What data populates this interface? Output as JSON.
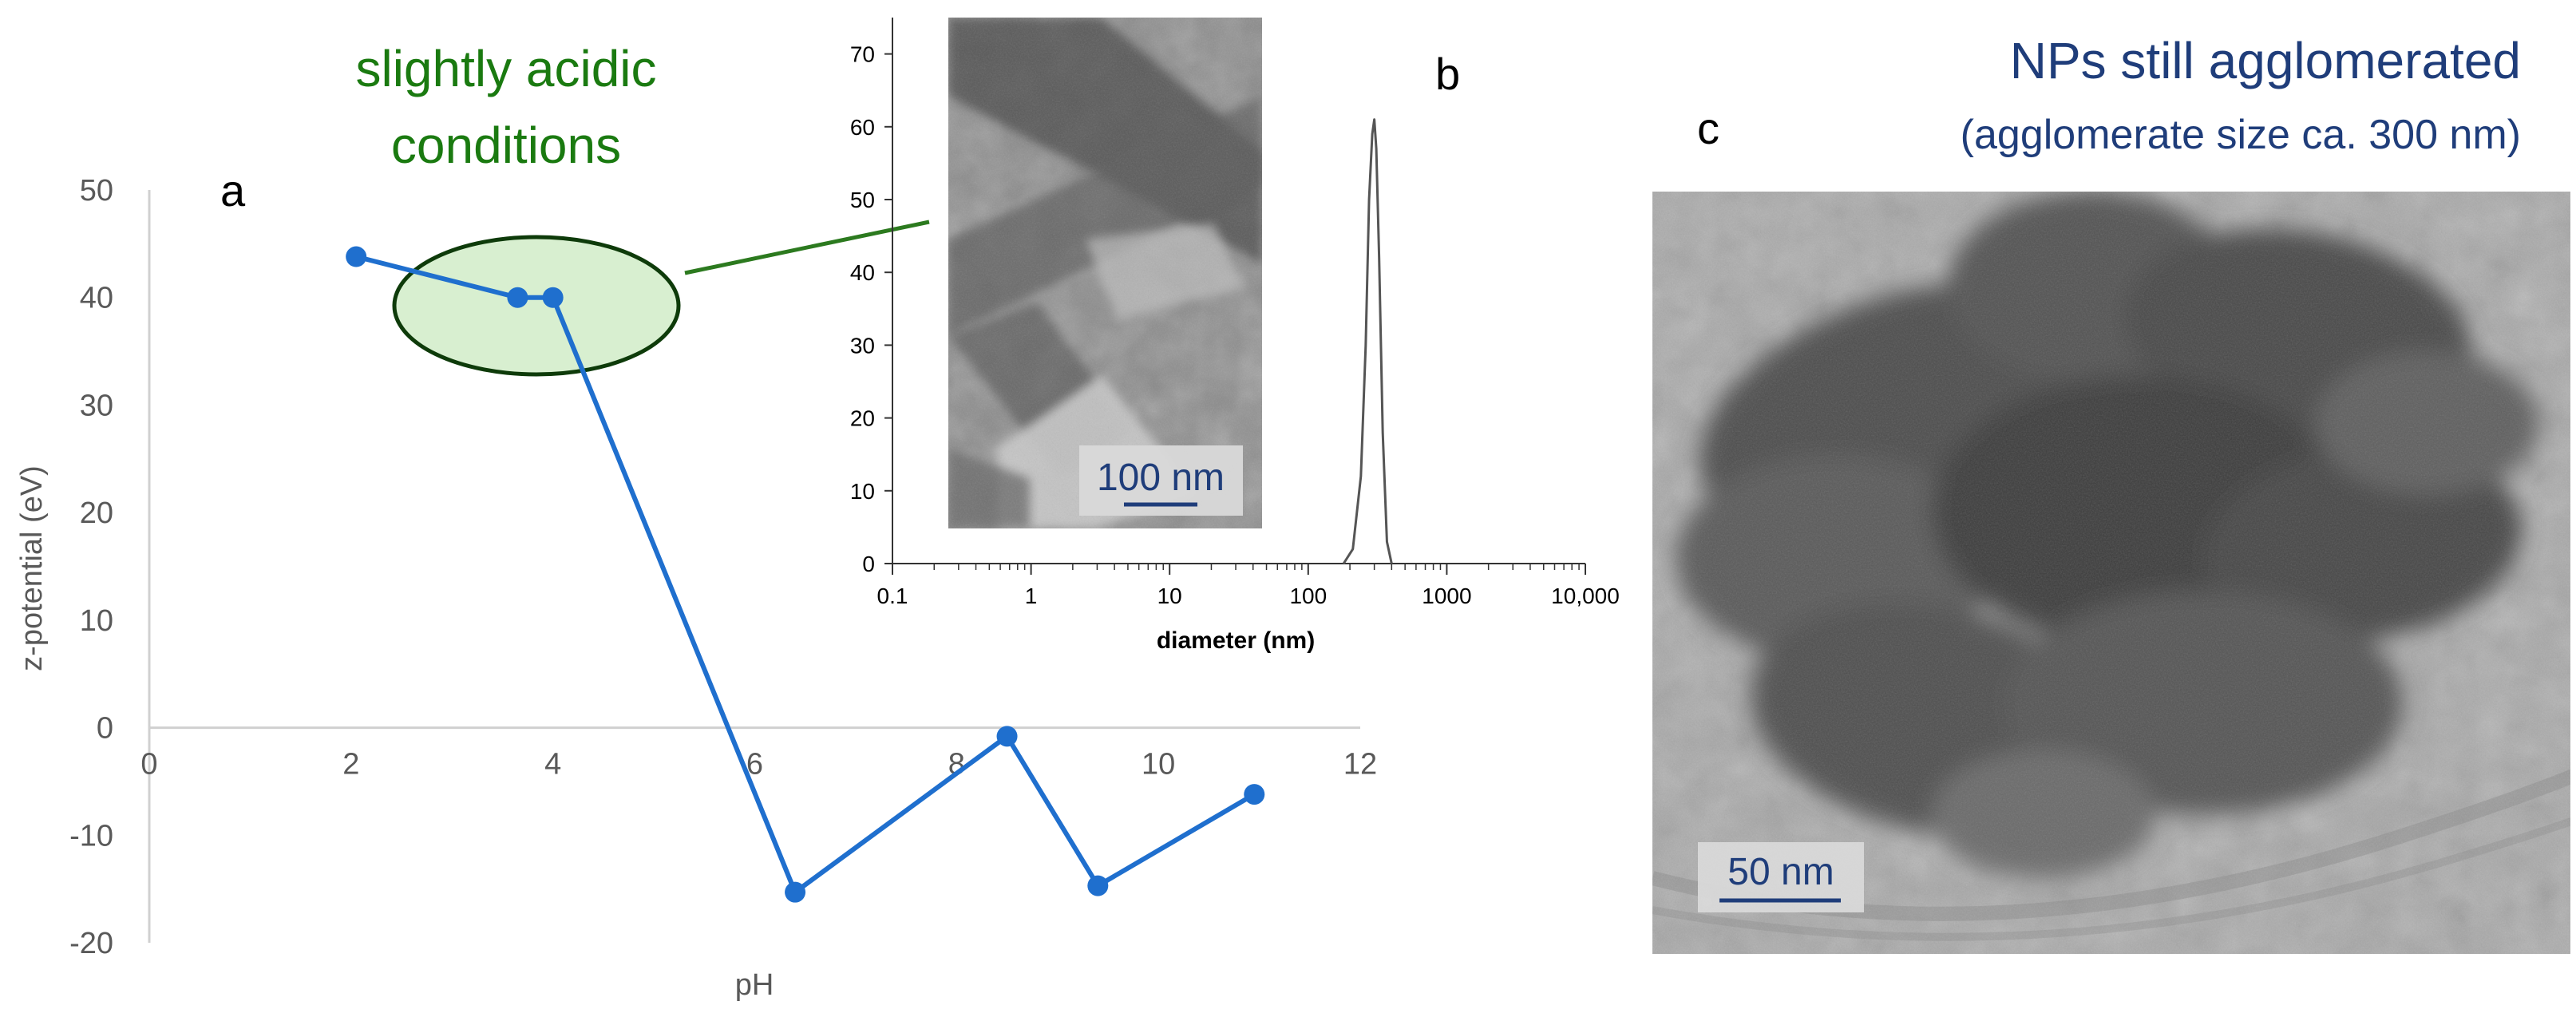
{
  "chart_data": [
    {
      "type": "line",
      "panel": "a",
      "xlabel": "pH",
      "ylabel": "z-potential (eV)",
      "xlim": [
        0,
        12
      ],
      "ylim": [
        -20,
        50
      ],
      "xticks": [
        0,
        2,
        4,
        6,
        8,
        10,
        12
      ],
      "yticks": [
        -20,
        -10,
        0,
        10,
        20,
        30,
        40,
        50
      ],
      "grid": false,
      "series": [
        {
          "x": [
            2.05,
            3.65,
            4.0,
            6.4,
            8.5,
            9.4,
            10.95
          ],
          "y": [
            43.8,
            40.0,
            40.0,
            -15.3,
            -0.8,
            -14.7,
            -6.2
          ],
          "color": "#1f6fce"
        }
      ],
      "annotation": "slightly acidic conditions"
    },
    {
      "type": "line",
      "panel": "b",
      "xlabel": "diameter (nm)",
      "xscale": "log",
      "xlim": [
        0.1,
        10000
      ],
      "ylim": [
        0,
        75
      ],
      "xtick_labels": [
        "0.1",
        "1",
        "10",
        "100",
        "1000",
        "10,000"
      ],
      "xtick_values": [
        0.1,
        1,
        10,
        100,
        1000,
        10000
      ],
      "yticks": [
        0,
        10,
        20,
        30,
        40,
        50,
        60,
        70
      ],
      "grid": false,
      "series": [
        {
          "x": [
            180,
            210,
            240,
            260,
            275,
            290,
            300,
            310,
            325,
            345,
            370,
            400
          ],
          "y": [
            0,
            2,
            12,
            30,
            50,
            59,
            61,
            57,
            42,
            18,
            3,
            0
          ],
          "color": "#555555"
        }
      ],
      "scale_bar": "100 nm"
    }
  ],
  "panel_labels": {
    "a": "a",
    "b": "b",
    "c": "c"
  },
  "annotations": {
    "acidic_line1": "slightly acidic",
    "acidic_line2": "conditions",
    "agglom_line1": "NPs still agglomerated",
    "agglom_line2": "(agglomerate size ca. 300 nm)"
  },
  "scale_bars": {
    "inset": "100 nm",
    "micrograph": "50 nm"
  },
  "colors": {
    "series_blue": "#1f6fce",
    "ellipse_fill": "#d8efd0",
    "annotation_green": "#1a7a10",
    "annotation_blue": "#1f3d7a"
  }
}
